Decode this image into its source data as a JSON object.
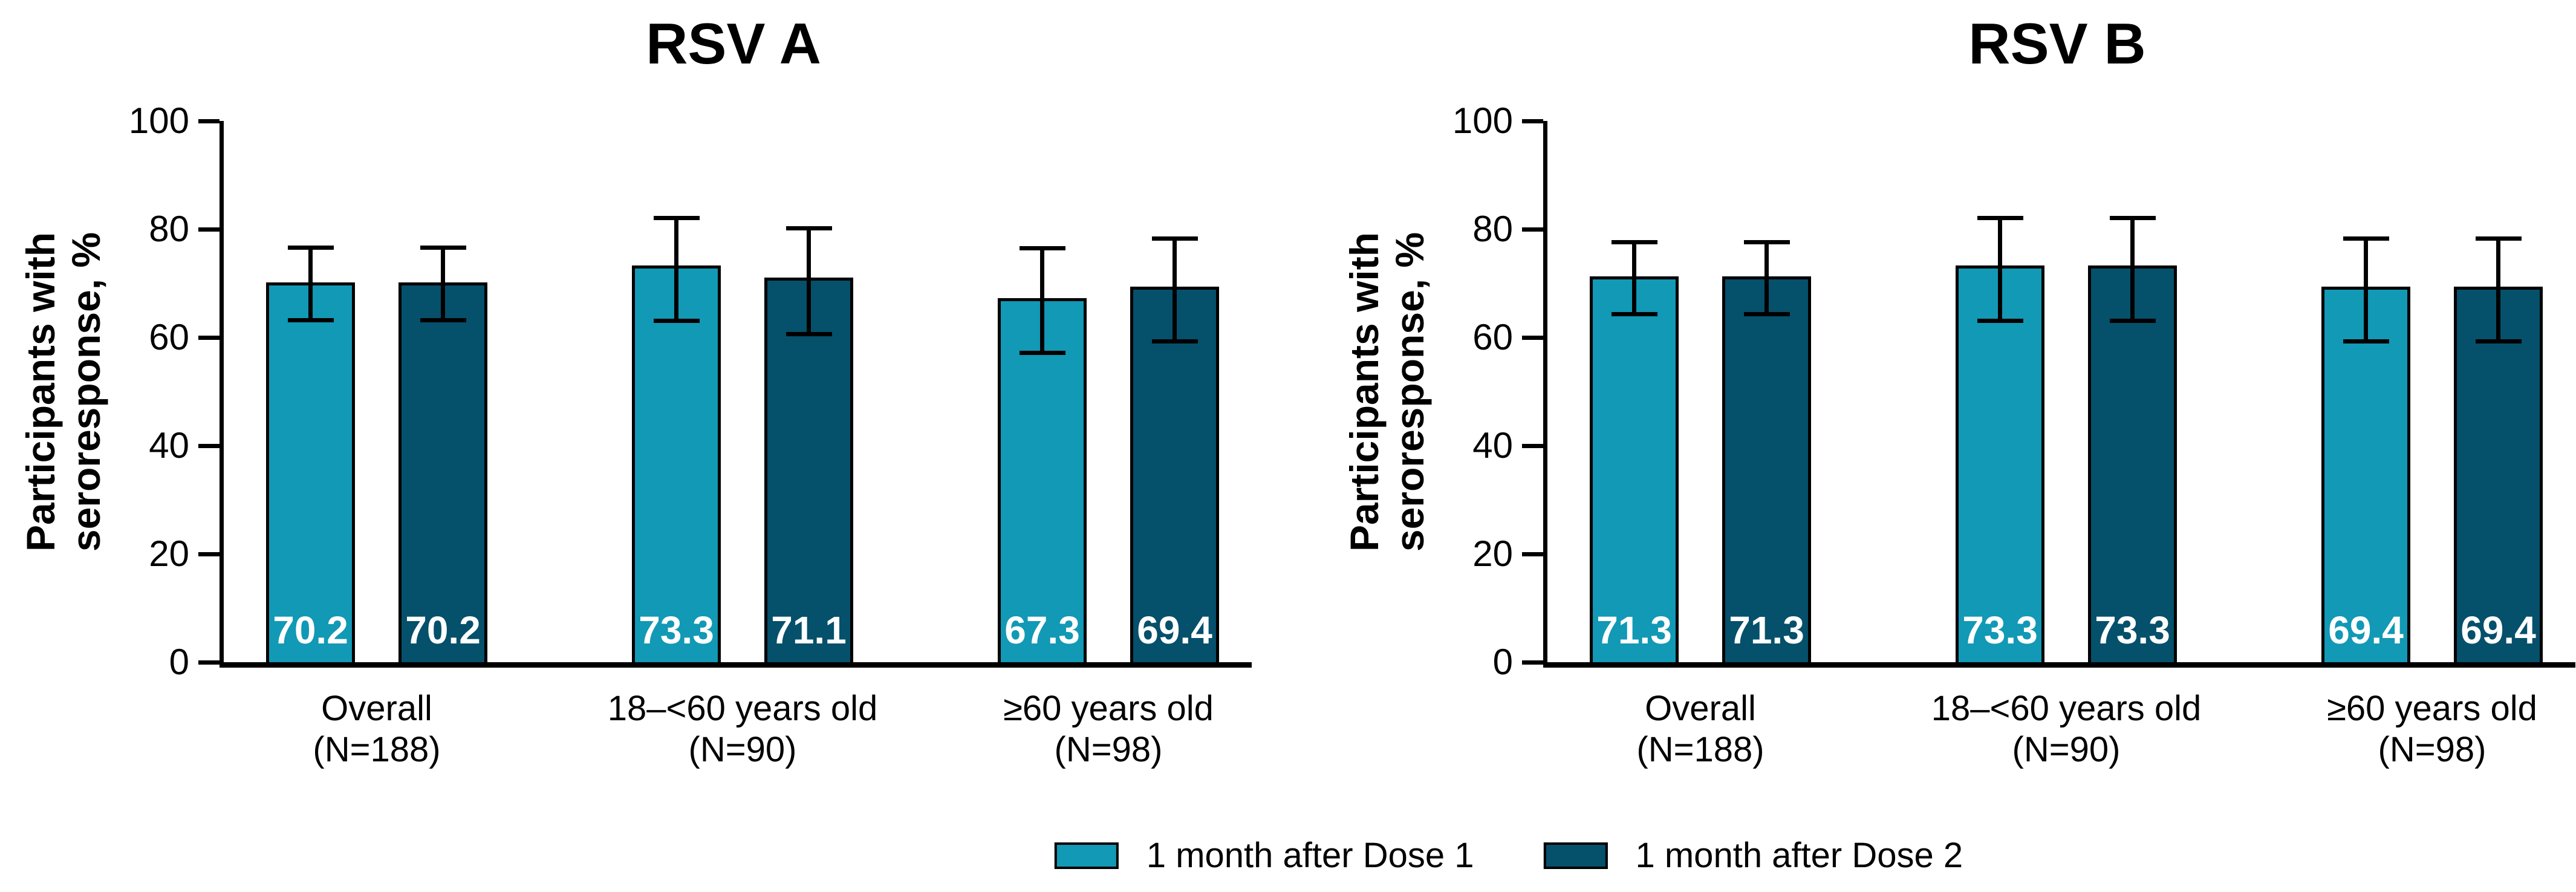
{
  "figure": {
    "background": "#ffffff",
    "description": "Participants with seroresponse by age group, 1 month after Dose 1 and Dose 2, for RSV A and RSV B"
  },
  "colors": {
    "dose1": "#1199B5",
    "dose2": "#05506B",
    "axis": "#000000",
    "bar_value_text": "#ffffff"
  },
  "legend": {
    "items": [
      {
        "label": "1 month after Dose 1",
        "color_key": "dose1"
      },
      {
        "label": "1 month after Dose 2",
        "color_key": "dose2"
      }
    ]
  },
  "chart_data": [
    {
      "type": "bar",
      "title": "RSV A",
      "ylabel": "Participants with\nseroresponse, %",
      "ylim": [
        0,
        100
      ],
      "yticks": [
        0,
        20,
        40,
        60,
        80,
        100
      ],
      "grid": false,
      "legend_position": "bottom-center",
      "categories": [
        "Overall\n(N=188)",
        "18–<60 years old\n(N=90)",
        "≥60 years old\n(N=98)"
      ],
      "series": [
        {
          "name": "1 month after Dose 1",
          "color_key": "dose1",
          "values": [
            70.2,
            73.3,
            67.3
          ],
          "error_low": [
            63.1,
            63.0,
            57.1
          ],
          "error_high": [
            76.7,
            82.1,
            76.5
          ]
        },
        {
          "name": "1 month after Dose 2",
          "color_key": "dose2",
          "values": [
            70.2,
            71.1,
            69.4
          ],
          "error_low": [
            63.1,
            60.6,
            59.2
          ],
          "error_high": [
            76.7,
            80.2,
            78.3
          ]
        }
      ]
    },
    {
      "type": "bar",
      "title": "RSV B",
      "ylabel": "Participants with\nseroresponse, %",
      "ylim": [
        0,
        100
      ],
      "yticks": [
        0,
        20,
        40,
        60,
        80,
        100
      ],
      "grid": false,
      "legend_position": "bottom-center",
      "categories": [
        "Overall\n(N=188)",
        "18–<60 years old\n(N=90)",
        "≥60 years old\n(N=98)"
      ],
      "series": [
        {
          "name": "1 month after Dose 1",
          "color_key": "dose1",
          "values": [
            71.3,
            73.3,
            69.4
          ],
          "error_low": [
            64.2,
            63.0,
            59.2
          ],
          "error_high": [
            77.7,
            82.1,
            78.3
          ]
        },
        {
          "name": "1 month after Dose 2",
          "color_key": "dose2",
          "values": [
            71.3,
            73.3,
            69.4
          ],
          "error_low": [
            64.2,
            63.0,
            59.2
          ],
          "error_high": [
            77.7,
            82.1,
            78.3
          ]
        }
      ]
    }
  ]
}
